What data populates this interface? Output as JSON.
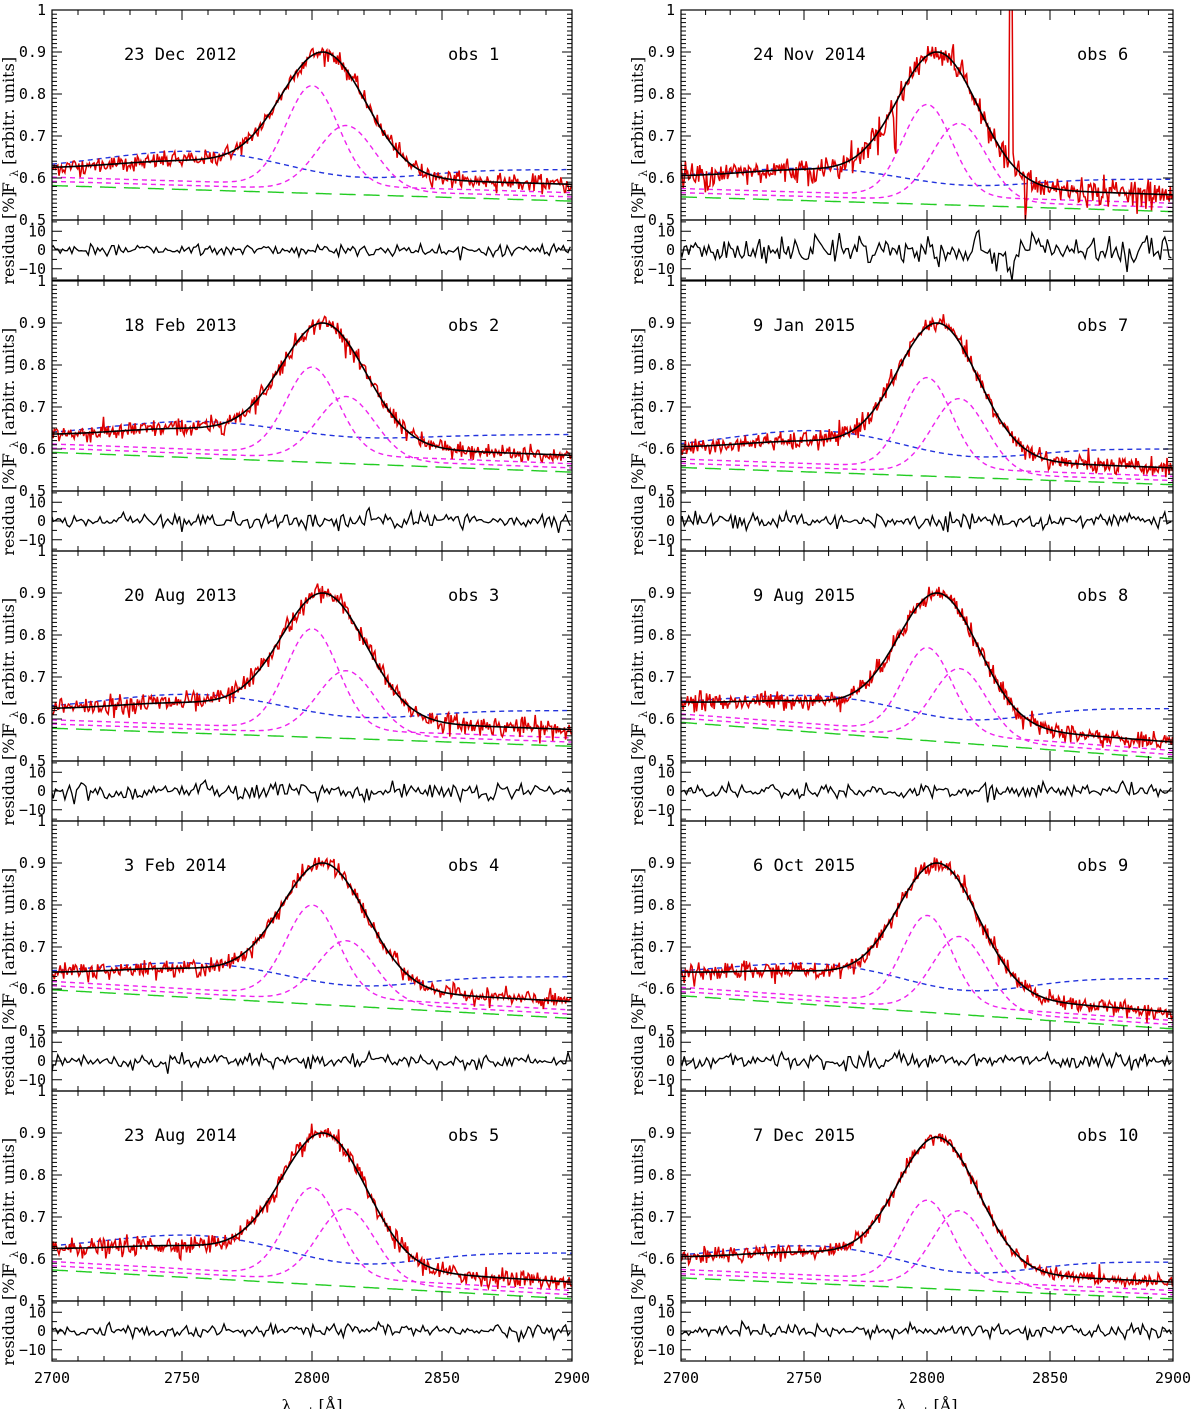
{
  "chart_data": {
    "type": "line",
    "title": "",
    "xlabel": "λ",
    "xlabel_sub": "rest",
    "xlabel_unit": "[Å]",
    "ylabel_main": "F",
    "ylabel_main_sub": "λ",
    "ylabel_main_unit": "[arbitr. units]",
    "ylabel_resid": "residua [%]",
    "xlim": [
      2700,
      2900
    ],
    "xticks": [
      2700,
      2750,
      2800,
      2850,
      2900
    ],
    "xtick_labels": [
      "2700",
      "2750",
      "2800",
      "2850",
      "2900"
    ],
    "ylim_main": [
      0.5,
      1.0
    ],
    "yticks_main": [
      0.5,
      0.6,
      0.7,
      0.8,
      0.9,
      1.0
    ],
    "ytick_labels_main": [
      "0.5",
      "0.6",
      "0.7",
      "0.8",
      "0.9",
      "1"
    ],
    "ylim_resid": [
      -16,
      16
    ],
    "yticks_resid": [
      -10,
      0,
      10
    ],
    "ytick_labels_resid": [
      "−10",
      "0",
      "10"
    ],
    "legend": [],
    "components": {
      "observed": "#dd0000",
      "total_fit": "#000000",
      "mgii_components": "#ee22ee",
      "continuum_broad": "#2233dd",
      "feii_template": "#22cc22"
    },
    "panels": [
      {
        "date": "23 Dec 2012",
        "obs": "obs 1",
        "peak": 0.9,
        "c1": 0.8,
        "c2": 0.715,
        "blue_start": 0.62,
        "blue_hump": 0.665,
        "blue_red": 0.62,
        "green_start": 0.582,
        "green_end": 0.545,
        "noise": 0.01,
        "resid_noise": 1.6
      },
      {
        "date": "18 Feb 2013",
        "obs": "obs 2",
        "peak": 0.9,
        "c1": 0.775,
        "c2": 0.715,
        "blue_start": 0.63,
        "blue_hump": 0.665,
        "blue_red": 0.645,
        "green_start": 0.592,
        "green_end": 0.545,
        "noise": 0.011,
        "resid_noise": 2.2
      },
      {
        "date": "20 Aug 2013",
        "obs": "obs 3",
        "peak": 0.9,
        "c1": 0.795,
        "c2": 0.705,
        "blue_start": 0.62,
        "blue_hump": 0.66,
        "blue_red": 0.62,
        "green_start": 0.578,
        "green_end": 0.535,
        "noise": 0.012,
        "resid_noise": 2.4
      },
      {
        "date": "3 Feb 2014",
        "obs": "obs 4",
        "peak": 0.9,
        "c1": 0.78,
        "c2": 0.705,
        "blue_start": 0.635,
        "blue_hump": 0.665,
        "blue_red": 0.615,
        "green_start": 0.598,
        "green_end": 0.53,
        "noise": 0.01,
        "resid_noise": 1.8
      },
      {
        "date": "23 Aug 2014",
        "obs": "obs 5",
        "peak": 0.9,
        "c1": 0.75,
        "c2": 0.71,
        "blue_start": 0.62,
        "blue_hump": 0.66,
        "blue_red": 0.6,
        "green_start": 0.574,
        "green_end": 0.505,
        "noise": 0.011,
        "resid_noise": 1.8
      },
      {
        "date": "24 Nov 2014",
        "obs": "obs 6",
        "peak": 0.9,
        "c1": 0.755,
        "c2": 0.72,
        "blue_start": 0.6,
        "blue_hump": 0.625,
        "blue_red": 0.59,
        "green_start": 0.555,
        "green_end": 0.52,
        "noise": 0.016,
        "resid_noise": 4.2
      },
      {
        "date": "9 Jan 2015",
        "obs": "obs 7",
        "peak": 0.9,
        "c1": 0.75,
        "c2": 0.71,
        "blue_start": 0.6,
        "blue_hump": 0.645,
        "blue_red": 0.6,
        "green_start": 0.556,
        "green_end": 0.515,
        "noise": 0.011,
        "resid_noise": 2.0
      },
      {
        "date": "9 Aug 2015",
        "obs": "obs 8",
        "peak": 0.9,
        "c1": 0.75,
        "c2": 0.71,
        "blue_start": 0.635,
        "blue_hump": 0.66,
        "blue_red": 0.6,
        "green_start": 0.592,
        "green_end": 0.505,
        "noise": 0.011,
        "resid_noise": 2.0
      },
      {
        "date": "6 Oct 2015",
        "obs": "obs 9",
        "peak": 0.9,
        "c1": 0.755,
        "c2": 0.715,
        "blue_start": 0.635,
        "blue_hump": 0.665,
        "blue_red": 0.6,
        "green_start": 0.584,
        "green_end": 0.505,
        "noise": 0.011,
        "resid_noise": 2.0
      },
      {
        "date": "7 Dec 2015",
        "obs": "obs 10",
        "peak": 0.89,
        "c1": 0.72,
        "c2": 0.705,
        "blue_start": 0.6,
        "blue_hump": 0.635,
        "blue_red": 0.575,
        "green_start": 0.555,
        "green_end": 0.505,
        "noise": 0.008,
        "resid_noise": 1.6
      }
    ]
  }
}
